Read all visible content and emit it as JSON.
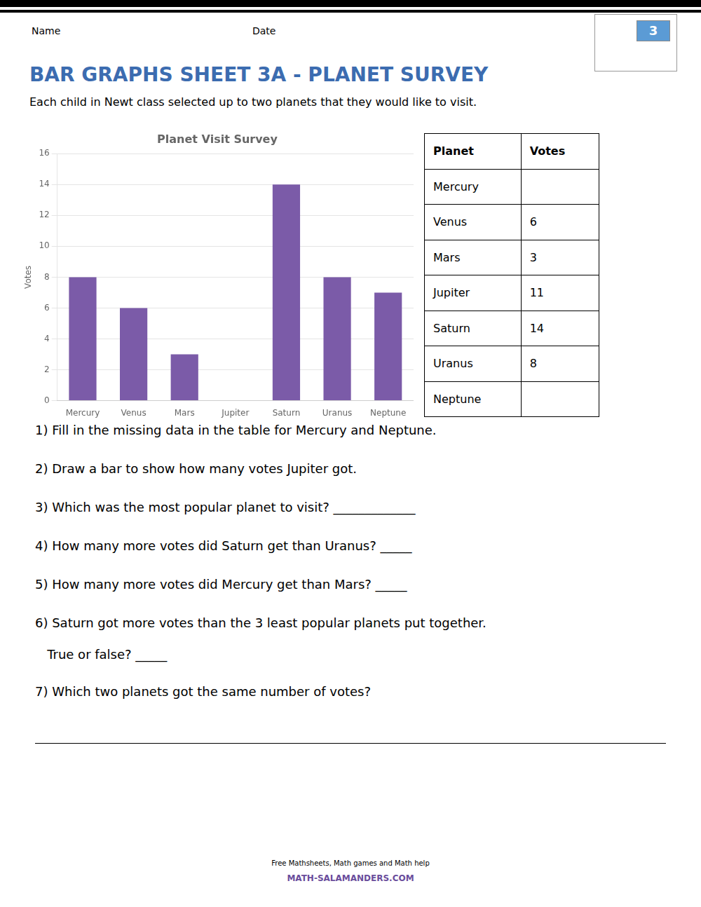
{
  "page_title": "BAR GRAPHS SHEET 3A - PLANET SURVEY",
  "subtitle": "Each child in Newt class selected up to two planets that they would like to visit.",
  "name_label": "Name",
  "date_label": "Date",
  "badge": "3",
  "questions": [
    "1) Fill in the missing data in the table for Mercury and Neptune.",
    "2) Draw a bar to show how many votes Jupiter got.",
    "3) Which was the most popular planet to visit? _____________",
    "4) How many more votes did Saturn get than Uranus? _____",
    "5) How many more votes did Mercury get than Mars? _____",
    "6) Saturn got more votes than the 3 least popular planets put together.",
    "   True or false? _____",
    "7) Which two planets got the same number of votes?"
  ],
  "footer": [
    "Free Mathsheets, Math games and Math help",
    "MATH-SALAMANDERS.COM"
  ],
  "table": {
    "header": [
      "Planet",
      "Votes"
    ],
    "rows": [
      [
        "Mercury",
        null
      ],
      [
        "Venus",
        6
      ],
      [
        "Mars",
        3
      ],
      [
        "Jupiter",
        11
      ],
      [
        "Saturn",
        14
      ],
      [
        "Uranus",
        8
      ],
      [
        "Neptune",
        null
      ]
    ]
  },
  "chart_data": {
    "type": "bar",
    "title": "Planet Visit Survey",
    "ylabel": "Votes",
    "categories": [
      "Mercury",
      "Venus",
      "Mars",
      "Jupiter",
      "Saturn",
      "Uranus",
      "Neptune"
    ],
    "values": [
      8,
      6,
      3,
      0,
      14,
      8,
      7
    ],
    "color": "#7B5BA8",
    "ylim": [
      0,
      16
    ],
    "yticks": [
      0,
      2,
      4,
      6,
      8,
      10,
      12,
      14,
      16
    ],
    "grid": true
  }
}
